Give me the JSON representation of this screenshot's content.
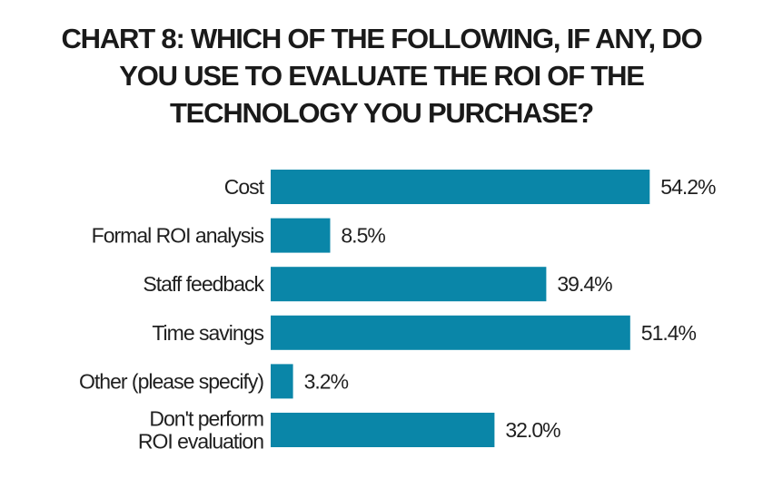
{
  "chart_data": {
    "type": "bar",
    "orientation": "horizontal",
    "title_lines": [
      "CHART 8:  WHICH OF THE FOLLOWING, IF ANY, DO",
      "YOU USE TO EVALUATE THE ROI OF THE",
      "TECHNOLOGY YOU PURCHASE?"
    ],
    "categories": [
      [
        "Cost"
      ],
      [
        "Formal ROI analysis"
      ],
      [
        "Staff feedback"
      ],
      [
        "Time savings"
      ],
      [
        "Other (please specify)"
      ],
      [
        "Don't perform",
        "ROI evaluation"
      ]
    ],
    "values": [
      54.2,
      8.5,
      39.4,
      51.4,
      3.2,
      32.0
    ],
    "value_labels": [
      "54.2%",
      "8.5%",
      "39.4%",
      "51.4%",
      "3.2%",
      "32.0%"
    ],
    "unit": "%",
    "grid": false,
    "legend": "none",
    "bar_color": "#0a86a8"
  }
}
